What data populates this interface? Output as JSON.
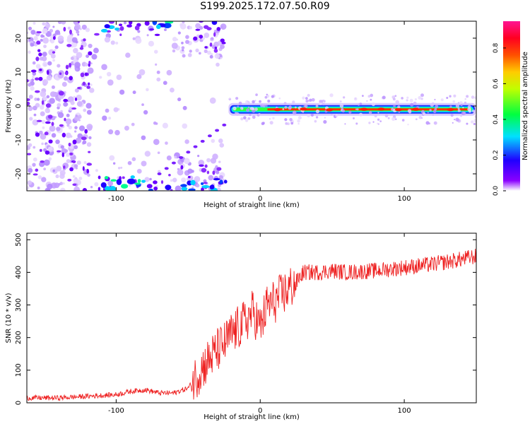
{
  "page": {
    "title": "S199.2025.172.07.50.R09"
  },
  "chart_data": [
    {
      "type": "heatmap",
      "xlabel": "Height of straight line (km)",
      "ylabel": "Frequency (Hz)",
      "xlim": [
        -162,
        150
      ],
      "ylim": [
        -25,
        25
      ],
      "x_ticks": [
        -100,
        0,
        100
      ],
      "y_ticks": [
        -20,
        -10,
        0,
        10,
        20
      ],
      "colorbar": {
        "label": "Normalized spectral amplitude",
        "range": [
          0.0,
          0.95
        ],
        "ticks": [
          0.0,
          0.2,
          0.4,
          0.6,
          0.8
        ],
        "colors": [
          "#ffffff",
          "#7a00ff",
          "#0000ff",
          "#00ffff",
          "#00ff00",
          "#ffff00",
          "#ff8000",
          "#ff0000",
          "#ff00aa"
        ]
      },
      "features": [
        {
          "x_range": [
            -162,
            -22
          ],
          "y": "diffuse scatter",
          "amplitude": "0.05-0.3"
        },
        {
          "x_range": [
            -22,
            150
          ],
          "y": -1,
          "amplitude": "0.3-0.95 (Doppler line)"
        }
      ]
    },
    {
      "type": "line",
      "xlabel": "Height of straight line (km)",
      "ylabel": "SNR (10 * v/v)",
      "xlim": [
        -162,
        150
      ],
      "ylim": [
        0,
        520
      ],
      "x_ticks": [
        -100,
        0,
        100
      ],
      "y_ticks": [
        0,
        100,
        200,
        300,
        400,
        500
      ],
      "color": "#ee2222",
      "series": [
        {
          "x": [
            -162,
            -140,
            -120,
            -100,
            -90,
            -80,
            -70,
            -60,
            -50,
            -40,
            -30,
            -25,
            -20,
            -15,
            -10,
            -5,
            0,
            5,
            10,
            15,
            20,
            25,
            30,
            40,
            50,
            60,
            80,
            100,
            120,
            140,
            150
          ],
          "values": [
            15,
            15,
            20,
            25,
            35,
            40,
            30,
            30,
            45,
            110,
            160,
            180,
            210,
            230,
            250,
            280,
            230,
            300,
            310,
            330,
            350,
            370,
            400,
            400,
            405,
            400,
            405,
            415,
            425,
            440,
            450
          ]
        }
      ]
    }
  ]
}
